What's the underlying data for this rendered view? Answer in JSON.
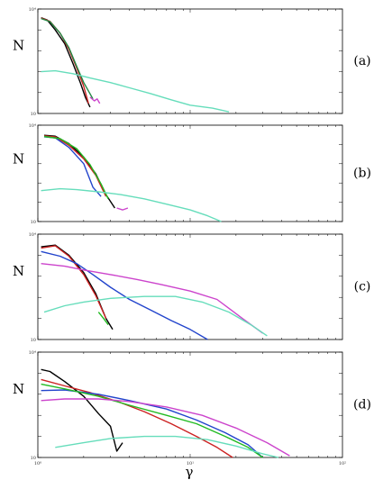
{
  "figure": {
    "xlabel": "γ",
    "ylabel": "N",
    "x_ticks": [
      "10⁰",
      "10¹",
      "10²"
    ],
    "y_tick_top": "10⁴",
    "y_tick_bottom": "10"
  },
  "chart_data": [
    {
      "type": "line",
      "panel_label": "(a)",
      "xscale": "log",
      "yscale": "log",
      "xlim": [
        1,
        100
      ],
      "ylim": [
        0.01,
        1000
      ],
      "series": [
        {
          "color": "#000000",
          "x": [
            1.05,
            1.15,
            1.3,
            1.5,
            1.7,
            1.9,
            2.05,
            2.2
          ],
          "y": [
            380,
            300,
            100,
            22,
            2.5,
            0.3,
            0.06,
            0.02
          ]
        },
        {
          "color": "#cc2222",
          "x": [
            1.05,
            1.2,
            1.4,
            1.6,
            1.8,
            2.0,
            2.15
          ],
          "y": [
            370,
            260,
            70,
            12,
            1.5,
            0.2,
            0.03
          ]
        },
        {
          "color": "#228844",
          "x": [
            1.05,
            1.2,
            1.4,
            1.6,
            1.8,
            2.0,
            2.3
          ],
          "y": [
            350,
            250,
            70,
            14,
            1.8,
            0.3,
            0.05
          ]
        },
        {
          "color": "#cc44cc",
          "x": [
            2.2,
            2.35,
            2.45,
            2.55
          ],
          "y": [
            0.06,
            0.04,
            0.05,
            0.03
          ]
        },
        {
          "color": "#66ddbb",
          "x": [
            1.05,
            1.3,
            1.7,
            2.2,
            3,
            4,
            5.5,
            7.5,
            10,
            14,
            18
          ],
          "y": [
            1.0,
            1.1,
            0.8,
            0.5,
            0.3,
            0.17,
            0.09,
            0.045,
            0.025,
            0.018,
            0.012
          ]
        }
      ]
    },
    {
      "type": "line",
      "panel_label": "(b)",
      "xscale": "log",
      "yscale": "log",
      "xlim": [
        1,
        100
      ],
      "ylim": [
        0.01,
        1000
      ],
      "series": [
        {
          "color": "#000000",
          "x": [
            1.1,
            1.3,
            1.6,
            2.0,
            2.4,
            2.8,
            3.2
          ],
          "y": [
            300,
            270,
            110,
            22,
            3,
            0.25,
            0.05
          ]
        },
        {
          "color": "#cc2222",
          "x": [
            1.1,
            1.3,
            1.6,
            2.0,
            2.4,
            2.8
          ],
          "y": [
            280,
            250,
            90,
            18,
            2.5,
            0.2
          ]
        },
        {
          "color": "#2244cc",
          "x": [
            1.1,
            1.3,
            1.6,
            2.0,
            2.3,
            2.6
          ],
          "y": [
            250,
            220,
            70,
            10,
            0.6,
            0.2
          ]
        },
        {
          "color": "#22bb22",
          "x": [
            1.1,
            1.4,
            1.8,
            2.2,
            2.6,
            2.9
          ],
          "y": [
            260,
            200,
            60,
            9,
            0.9,
            0.15
          ]
        },
        {
          "color": "#cc44cc",
          "x": [
            3.3,
            3.6,
            3.9
          ],
          "y": [
            0.05,
            0.04,
            0.05
          ]
        },
        {
          "color": "#66ddbb",
          "x": [
            1.05,
            1.4,
            1.8,
            2.5,
            3.5,
            5,
            7,
            10,
            13,
            16
          ],
          "y": [
            0.4,
            0.5,
            0.45,
            0.35,
            0.25,
            0.15,
            0.08,
            0.04,
            0.02,
            0.01
          ]
        }
      ]
    },
    {
      "type": "line",
      "panel_label": "(c)",
      "xscale": "log",
      "yscale": "log",
      "xlim": [
        1,
        100
      ],
      "ylim": [
        0.01,
        1000
      ],
      "series": [
        {
          "color": "#000000",
          "x": [
            1.05,
            1.3,
            1.6,
            2.0,
            2.4,
            2.8,
            3.1
          ],
          "y": [
            250,
            300,
            100,
            15,
            1.5,
            0.1,
            0.03
          ]
        },
        {
          "color": "#cc2222",
          "x": [
            1.05,
            1.3,
            1.6,
            2.0,
            2.4,
            2.8
          ],
          "y": [
            220,
            280,
            90,
            12,
            1.2,
            0.1
          ]
        },
        {
          "color": "#2244cc",
          "x": [
            1.05,
            1.4,
            1.8,
            2.3,
            3,
            4,
            5.5,
            7.5,
            10,
            13
          ],
          "y": [
            150,
            90,
            40,
            12,
            3,
            0.8,
            0.25,
            0.08,
            0.03,
            0.01
          ]
        },
        {
          "color": "#cc44cc",
          "x": [
            1.05,
            1.5,
            2,
            3,
            4.5,
            6.5,
            10,
            15,
            22,
            30
          ],
          "y": [
            40,
            30,
            20,
            12,
            7,
            4,
            2,
            0.8,
            0.1,
            0.02
          ]
        },
        {
          "color": "#66ddbb",
          "x": [
            1.1,
            1.5,
            2,
            3,
            5,
            8,
            12,
            18,
            25,
            32
          ],
          "y": [
            0.2,
            0.4,
            0.6,
            0.9,
            1.1,
            1.1,
            0.6,
            0.2,
            0.05,
            0.015
          ]
        },
        {
          "color": "#22bb22",
          "x": [
            2.5,
            2.7,
            2.9
          ],
          "y": [
            0.2,
            0.1,
            0.05
          ]
        }
      ]
    },
    {
      "type": "line",
      "panel_label": "(d)",
      "xscale": "log",
      "yscale": "log",
      "xlim": [
        1,
        100
      ],
      "ylim": [
        0.01,
        1000
      ],
      "series": [
        {
          "color": "#000000",
          "x": [
            1.05,
            1.2,
            1.5,
            2,
            2.5,
            3,
            3.3,
            3.6
          ],
          "y": [
            150,
            120,
            40,
            8,
            1.2,
            0.3,
            0.02,
            0.05
          ]
        },
        {
          "color": "#cc2222",
          "x": [
            1.05,
            1.5,
            2.2,
            3.5,
            5,
            7.5,
            11,
            15,
            19
          ],
          "y": [
            50,
            25,
            12,
            4,
            1.5,
            0.4,
            0.1,
            0.03,
            0.01
          ]
        },
        {
          "color": "#2244cc",
          "x": [
            1.05,
            1.5,
            2.5,
            4,
            7,
            11,
            17,
            24,
            30
          ],
          "y": [
            15,
            16,
            10,
            5,
            2,
            0.6,
            0.15,
            0.04,
            0.01
          ]
        },
        {
          "color": "#22bb22",
          "x": [
            1.05,
            1.5,
            2.5,
            4,
            7,
            11,
            17,
            24,
            30
          ],
          "y": [
            30,
            18,
            8,
            3,
            1,
            0.4,
            0.1,
            0.03,
            0.01
          ]
        },
        {
          "color": "#cc44cc",
          "x": [
            1.05,
            1.5,
            2.5,
            4,
            7,
            12,
            20,
            32,
            45
          ],
          "y": [
            5,
            6,
            6,
            4.5,
            2.5,
            1,
            0.25,
            0.05,
            0.012
          ]
        },
        {
          "color": "#66ddbb",
          "x": [
            1.3,
            2,
            3,
            5,
            8,
            13,
            20,
            30,
            38
          ],
          "y": [
            0.03,
            0.05,
            0.08,
            0.1,
            0.1,
            0.07,
            0.035,
            0.015,
            0.01
          ]
        }
      ]
    }
  ]
}
